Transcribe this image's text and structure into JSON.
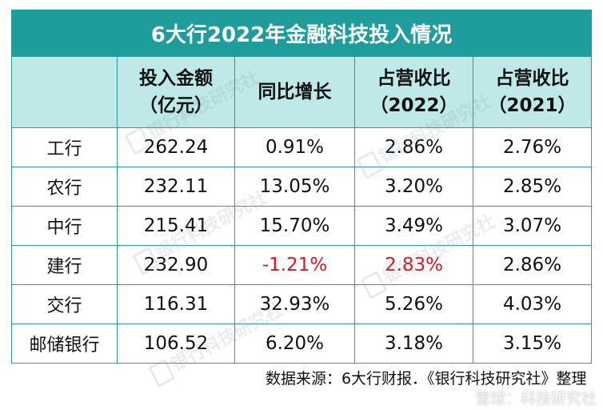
{
  "table": {
    "title": "6大行2022年金融科技投入情况",
    "headers": [
      {
        "line1": "",
        "line2": ""
      },
      {
        "line1": "投入金额",
        "line2": "（亿元）"
      },
      {
        "line1": "同比增长",
        "line2": ""
      },
      {
        "line1": "占营收比",
        "line2": "（2022）"
      },
      {
        "line1": "占营收比",
        "line2": "（2021）"
      }
    ],
    "rows": [
      {
        "bank": "工行",
        "amount": "262.24",
        "growth": "0.91%",
        "ratio2022": "2.86%",
        "ratio2021": "2.76%"
      },
      {
        "bank": "农行",
        "amount": "232.11",
        "growth": "13.05%",
        "ratio2022": "3.20%",
        "ratio2021": "2.85%"
      },
      {
        "bank": "中行",
        "amount": "215.41",
        "growth": "15.70%",
        "ratio2022": "3.49%",
        "ratio2021": "3.07%"
      },
      {
        "bank": "建行",
        "amount": "232.90",
        "growth": "-1.21%",
        "ratio2022": "2.83%",
        "ratio2021": "2.86%"
      },
      {
        "bank": "交行",
        "amount": "116.31",
        "growth": "32.93%",
        "ratio2022": "5.26%",
        "ratio2021": "4.03%"
      },
      {
        "bank": "邮储银行",
        "amount": "106.52",
        "growth": "6.20%",
        "ratio2022": "3.18%",
        "ratio2021": "3.15%"
      }
    ],
    "source": "数据来源：6大行财报．《银行科技研究社》整理"
  },
  "colors": {
    "title_bg": "#1f9c9c",
    "header_bg": "#bfe8e8",
    "border": "#2f9b9b",
    "negative": "#e0141e"
  },
  "watermark": {
    "text": "银行科技研究社",
    "corner": "雪球：科技研究社"
  }
}
